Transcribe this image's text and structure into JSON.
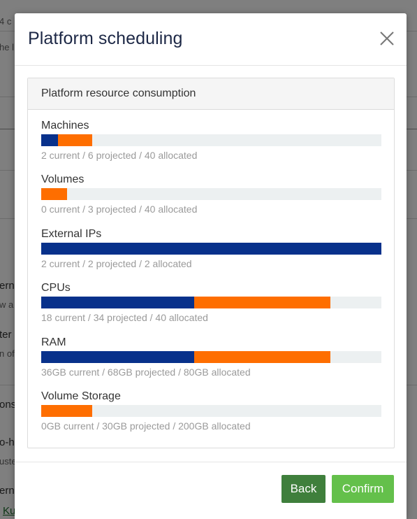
{
  "background": {
    "fragments": [
      "4 c",
      "he l",
      "ern",
      "w a",
      "ter",
      "n of",
      "ons",
      "o-h",
      "uste",
      "ern",
      "Ku"
    ]
  },
  "modal": {
    "title": "Platform scheduling",
    "close_icon": "close-icon",
    "panel_title": "Platform resource consumption",
    "metrics": [
      {
        "label": "Machines",
        "current": 2,
        "projected": 6,
        "allocated": 40,
        "summary": "2 current / 6 projected / 40 allocated"
      },
      {
        "label": "Volumes",
        "current": 0,
        "projected": 3,
        "allocated": 40,
        "summary": "0 current / 3 projected / 40 allocated"
      },
      {
        "label": "External IPs",
        "current": 2,
        "projected": 2,
        "allocated": 2,
        "summary": "2 current / 2 projected / 2 allocated"
      },
      {
        "label": "CPUs",
        "current": 18,
        "projected": 34,
        "allocated": 40,
        "summary": "18 current / 34 projected / 40 allocated"
      },
      {
        "label": "RAM",
        "current": 36,
        "projected": 68,
        "allocated": 80,
        "summary": "36GB current / 68GB projected / 80GB allocated"
      },
      {
        "label": "Volume Storage",
        "current": 0,
        "projected": 30,
        "allocated": 200,
        "summary": "0GB current / 30GB projected / 200GB allocated"
      }
    ],
    "buttons": {
      "back": "Back",
      "confirm": "Confirm"
    }
  },
  "colors": {
    "current": "#08318b",
    "projected": "#fe6e00",
    "track": "#ecf0f1",
    "back_button": "#3f7f3c",
    "confirm_button": "#64c04b"
  }
}
